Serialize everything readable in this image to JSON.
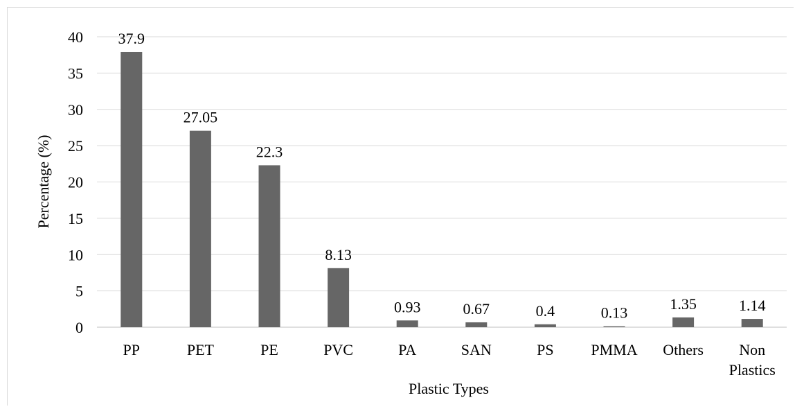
{
  "chart_data": {
    "type": "bar",
    "title": "",
    "xlabel": "Plastic Types",
    "ylabel": "Percentage (%)",
    "ylim": [
      0,
      40
    ],
    "yticks": [
      0,
      5,
      10,
      15,
      20,
      25,
      30,
      35,
      40
    ],
    "grid": true,
    "categories": [
      "PP",
      "PET",
      "PE",
      "PVC",
      "PA",
      "SAN",
      "PS",
      "PMMA",
      "Others",
      "Non\nPlastics"
    ],
    "values": [
      37.9,
      27.05,
      22.3,
      8.13,
      0.93,
      0.67,
      0.4,
      0.13,
      1.35,
      1.14
    ],
    "value_labels": [
      "37.9",
      "27.05",
      "22.3",
      "8.13",
      "0.93",
      "0.67",
      "0.4",
      "0.13",
      "1.35",
      "1.14"
    ],
    "colors": {
      "bar": "#666666",
      "grid": "#d9d9d9",
      "axis": "#bfbfbf"
    }
  }
}
